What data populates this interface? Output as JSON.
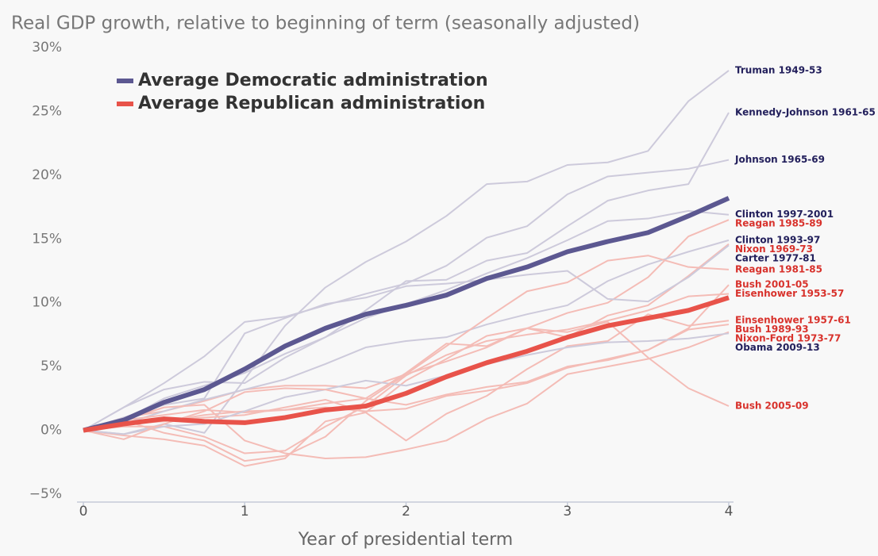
{
  "chart_data": {
    "type": "line",
    "title": "Real GDP growth, relative to beginning of term (seasonally adjusted)",
    "x_label": "Year of presidential term",
    "x": [
      0,
      0.25,
      0.5,
      0.75,
      1,
      1.25,
      1.5,
      1.75,
      2,
      2.25,
      2.5,
      2.75,
      3,
      3.25,
      3.5,
      3.75,
      4
    ],
    "xlim": [
      0,
      4
    ],
    "xticks": [
      0,
      1,
      2,
      3,
      4
    ],
    "ylim": [
      -5,
      30
    ],
    "yticks": [
      {
        "value": -5,
        "label": "−5%"
      },
      {
        "value": 0,
        "label": "0%"
      },
      {
        "value": 5,
        "label": "5%"
      },
      {
        "value": 10,
        "label": "10%"
      },
      {
        "value": 15,
        "label": "15%"
      },
      {
        "value": 20,
        "label": "20%"
      },
      {
        "value": 25,
        "label": "25%"
      },
      {
        "value": 30,
        "label": "30%"
      }
    ],
    "grid": false,
    "legend": "upper left",
    "series": [
      {
        "name": "Average Democratic administration",
        "color": "#5c5891",
        "values": [
          0,
          0.8,
          2.2,
          3.2,
          4.8,
          6.6,
          8.0,
          9.1,
          9.8,
          10.6,
          11.9,
          12.8,
          14.0,
          14.8,
          15.5,
          16.8,
          18.2
        ]
      },
      {
        "name": "Average Republican administration",
        "color": "#e8534a",
        "values": [
          0,
          0.5,
          0.9,
          0.7,
          0.6,
          1.0,
          1.6,
          1.9,
          2.9,
          4.2,
          5.3,
          6.2,
          7.3,
          8.2,
          8.8,
          9.4,
          10.4
        ]
      }
    ],
    "annotated_lines": [
      {
        "name": "Truman 1949-53",
        "color": "#cdcadb",
        "label_color": "#23205c",
        "values": [
          0,
          -0.3,
          0.5,
          -0.2,
          4,
          8.2,
          11.2,
          13.2,
          14.8,
          16.8,
          19.3,
          19.5,
          20.8,
          21,
          21.9,
          25.8,
          28.2
        ]
      },
      {
        "name": "Kennedy-Johnson 1961-65",
        "color": "#cdcadb",
        "label_color": "#23205c",
        "values": [
          0,
          1.8,
          3.2,
          3.8,
          3.7,
          5.7,
          7.3,
          9.4,
          11.7,
          11.8,
          13.3,
          13.9,
          16,
          18,
          18.8,
          19.3,
          24.9
        ]
      },
      {
        "name": "Johnson 1965-69",
        "color": "#cdcadb",
        "label_color": "#23205c",
        "values": [
          0,
          1.8,
          3.7,
          5.8,
          8.5,
          8.9,
          9.8,
          10.7,
          11.5,
          12.9,
          15.1,
          16,
          18.5,
          19.9,
          20.2,
          20.5,
          21.2
        ]
      },
      {
        "name": "Clinton 1997-2001",
        "color": "#cdcadb",
        "label_color": "#23205c",
        "values": [
          0,
          0.8,
          2.5,
          3.5,
          4.5,
          6,
          7.3,
          8.8,
          9.9,
          11,
          12.3,
          13.5,
          14.9,
          16.4,
          16.6,
          17.2,
          16.9
        ]
      },
      {
        "name": "Reagan 1985-89",
        "color": "#f4bcb6",
        "label_color": "#d8322c",
        "values": [
          0,
          1,
          1.5,
          2.3,
          3.2,
          3.5,
          3.5,
          3.3,
          4.4,
          5.4,
          6.5,
          8,
          9.2,
          10,
          12,
          15.2,
          16.5
        ]
      },
      {
        "name": "Clinton 1993-97",
        "color": "#cdcadb",
        "label_color": "#23205c",
        "values": [
          0,
          0.5,
          1.5,
          2.4,
          3.2,
          4,
          5.2,
          6.5,
          7,
          7.3,
          8.3,
          9.1,
          9.8,
          11.7,
          13,
          14,
          14.9
        ]
      },
      {
        "name": "Nixon 1969-73",
        "color": "#f4bcb6",
        "label_color": "#d8322c",
        "values": [
          0,
          0.5,
          0.8,
          1,
          1.2,
          1.8,
          2.4,
          1.4,
          3.9,
          5.6,
          7.4,
          8,
          7.3,
          9,
          9.8,
          12.1,
          14.6
        ]
      },
      {
        "name": "Carter 1977-81",
        "color": "#cdcadb",
        "label_color": "#23205c",
        "values": [
          0,
          1,
          2,
          2.5,
          7.6,
          8.8,
          9.9,
          10.4,
          11.3,
          11.5,
          11.8,
          12.2,
          12.5,
          10.3,
          10.1,
          12,
          14.5
        ]
      },
      {
        "name": "Reagan 1981-85",
        "color": "#f4bcb6",
        "label_color": "#d8322c",
        "values": [
          0,
          0.8,
          -0.2,
          -0.8,
          -2.4,
          -2,
          -0.5,
          2.3,
          4.4,
          6.6,
          8.8,
          10.9,
          11.6,
          13.3,
          13.7,
          12.8,
          12.6
        ]
      },
      {
        "name": "Bush 2001-05",
        "color": "#f4bcb6",
        "label_color": "#d8322c",
        "values": [
          0,
          0.5,
          0.7,
          1.2,
          1.5,
          1.6,
          2.1,
          2.5,
          2,
          2.8,
          3.4,
          3.8,
          5,
          5.5,
          6.3,
          8,
          11.4
        ]
      },
      {
        "name": "Eisenhower 1953-57",
        "color": "#f4bcb6",
        "label_color": "#d8322c",
        "values": [
          0,
          0.3,
          0.3,
          -0.5,
          -1.8,
          -1.6,
          0.3,
          1.9,
          4.3,
          5.9,
          7,
          7.5,
          7.9,
          8.6,
          9.4,
          10.5,
          10.7
        ]
      },
      {
        "name": "Einsenhower 1957-61",
        "color": "#f4bcb6",
        "label_color": "#d8322c",
        "values": [
          0,
          -0.4,
          -0.7,
          -1.2,
          -2.8,
          -2.2,
          0.7,
          1.4,
          -0.8,
          1.3,
          2.7,
          4.8,
          6.6,
          7,
          9.1,
          8.2,
          8.6
        ]
      },
      {
        "name": "Bush 1989-93",
        "color": "#f4bcb6",
        "label_color": "#d8322c",
        "values": [
          0,
          0.8,
          1.2,
          1.6,
          1.4,
          1.6,
          1.8,
          1.5,
          1.7,
          2.7,
          3.1,
          3.7,
          4.9,
          5.6,
          6.3,
          7.9,
          8.3
        ]
      },
      {
        "name": "Nixon-Ford 1973-77",
        "color": "#f4bcb6",
        "label_color": "#d8322c",
        "values": [
          0,
          0.8,
          1.8,
          2,
          -0.8,
          -1.8,
          -2.2,
          -2.1,
          -1.5,
          -0.8,
          0.9,
          2.1,
          4.4,
          5,
          5.6,
          6.5,
          7.7
        ]
      },
      {
        "name": "Obama 2009-13",
        "color": "#cdcadb",
        "label_color": "#23205c",
        "values": [
          0,
          -0.3,
          0.3,
          0.5,
          1.5,
          2.6,
          3.2,
          3.9,
          3.5,
          4.3,
          5.2,
          5.9,
          6.5,
          6.9,
          7,
          7.2,
          7.6
        ]
      },
      {
        "name": "Bush 2005-09",
        "color": "#f4bcb6",
        "label_color": "#d8322c",
        "values": [
          0,
          -0.7,
          0.5,
          1.5,
          3,
          3.3,
          3.2,
          2.5,
          4.5,
          6.8,
          6.6,
          8,
          7.7,
          8.5,
          5.7,
          3.3,
          1.9
        ]
      }
    ]
  }
}
